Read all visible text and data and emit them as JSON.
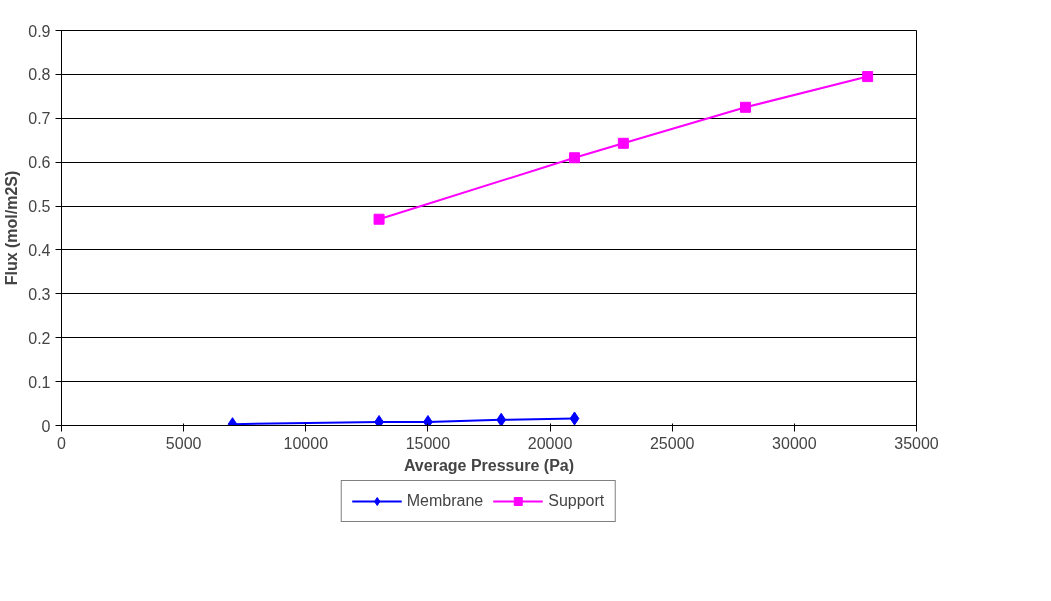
{
  "chart_data": {
    "type": "line",
    "xlabel": "Average Pressure (Pa)",
    "ylabel": "Flux (mol/m2S)",
    "series": [
      {
        "name": "Membrane",
        "color": "#0000ff",
        "marker": "diamond",
        "x": [
          7000,
          13000,
          15000,
          18000,
          21000
        ],
        "values": [
          0.003,
          0.008,
          0.008,
          0.013,
          0.016
        ]
      },
      {
        "name": "Support",
        "color": "#ff00ff",
        "marker": "square",
        "x": [
          13000,
          21000,
          23000,
          28000,
          33000
        ],
        "values": [
          0.47,
          0.61,
          0.643,
          0.725,
          0.795
        ]
      }
    ],
    "xlim": [
      0,
      35000
    ],
    "xticks": [
      0,
      5000,
      10000,
      15000,
      20000,
      25000,
      30000,
      35000
    ],
    "ylim": [
      0,
      0.9
    ],
    "yticks": [
      0,
      0.1,
      0.2,
      0.3,
      0.4,
      0.5,
      0.6,
      0.7,
      0.8,
      0.9
    ],
    "grid": "y",
    "legend": "bottom",
    "line_style": "solid"
  }
}
